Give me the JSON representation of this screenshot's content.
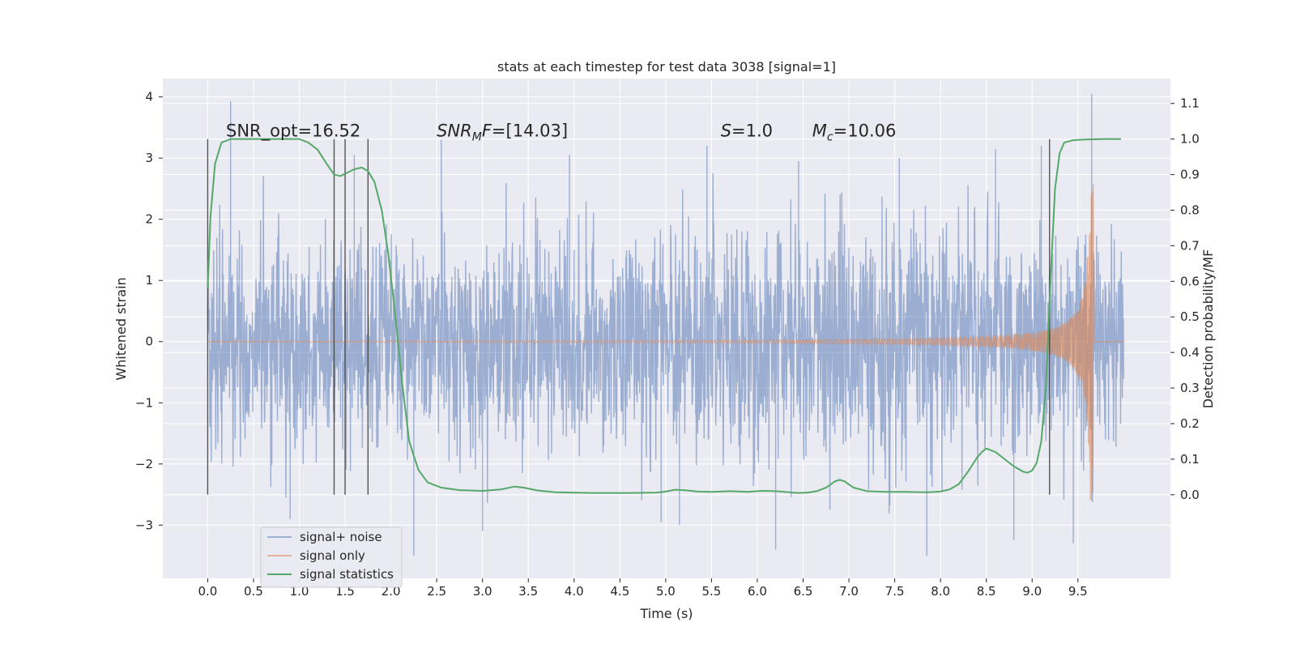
{
  "chart_data": {
    "type": "line",
    "title": "stats at each timestep for test data 3038 [signal=1]",
    "xlabel": "Time (s)",
    "ylabel": "Whitened strain",
    "y2label": "Detection probability/MF",
    "xlim": [
      -0.49,
      10.51
    ],
    "ylim": [
      -3.87,
      4.3
    ],
    "y2lim": [
      -0.235,
      1.17
    ],
    "x_ticks": [
      0.0,
      0.5,
      1.0,
      1.5,
      2.0,
      2.5,
      3.0,
      3.5,
      4.0,
      4.5,
      5.0,
      5.5,
      6.0,
      6.5,
      7.0,
      7.5,
      8.0,
      8.5,
      9.0,
      9.5
    ],
    "x_tick_labels": [
      "0.0",
      "0.5",
      "1.0",
      "1.5",
      "2.0",
      "2.5",
      "3.0",
      "3.5",
      "4.0",
      "4.5",
      "5.0",
      "5.5",
      "6.0",
      "6.5",
      "7.0",
      "7.5",
      "8.0",
      "8.5",
      "9.0",
      "9.5"
    ],
    "y_ticks": [
      4,
      3,
      2,
      1,
      0,
      -1,
      -2,
      -3
    ],
    "y_tick_labels": [
      "4",
      "3",
      "2",
      "1",
      "0",
      "−1",
      "−2",
      "−3"
    ],
    "y2_ticks": [
      1.1,
      1.0,
      0.9,
      0.8,
      0.7,
      0.6,
      0.5,
      0.4,
      0.3,
      0.2,
      0.1,
      0.0
    ],
    "y2_tick_labels": [
      "1.1",
      "1.0",
      "0.9",
      "0.8",
      "0.7",
      "0.6",
      "0.5",
      "0.4",
      "0.3",
      "0.2",
      "0.1",
      "0.0"
    ],
    "grid": true,
    "legend": "lower-left",
    "colors": {
      "background": "#eaeaf2",
      "grid": "#ffffff",
      "noise": "#4c72b0",
      "signal": "#dd8452",
      "stats": "#55a868",
      "markers": "#3a3a3a"
    },
    "annotations": [
      {
        "key": "snr_opt",
        "text": "SNR_opt=16.52",
        "x": 0.2,
        "y": 1.0
      },
      {
        "key": "snr_mf",
        "text": "SNR_MF=[14.03]",
        "x": 2.5,
        "y": 1.0
      },
      {
        "key": "s",
        "text": "S=1.0",
        "x": 5.6,
        "y": 1.0
      },
      {
        "key": "mc",
        "text": "M_c=10.06",
        "x": 6.6,
        "y": 1.0
      }
    ],
    "vertical_lines": [
      0.0,
      1.38,
      1.5,
      1.75,
      9.19
    ],
    "series": [
      {
        "name": "signal+ noise",
        "axis": "left",
        "t_range": [
          0.0,
          10.0
        ],
        "envelope_sigma": 1.0,
        "upper_peaks": [
          [
            0.25,
            3.93
          ],
          [
            9.65,
            4.05
          ],
          [
            2.55,
            3.3
          ],
          [
            5.45,
            3.2
          ],
          [
            8.6,
            3.15
          ],
          [
            1.6,
            3.05
          ],
          [
            3.95,
            3.05
          ],
          [
            7.55,
            3.0
          ],
          [
            6.45,
            2.95
          ],
          [
            9.1,
            3.2
          ]
        ],
        "lower_peaks": [
          [
            2.25,
            -3.5
          ],
          [
            6.2,
            -3.4
          ],
          [
            3.0,
            -3.1
          ],
          [
            8.8,
            -3.25
          ],
          [
            5.15,
            -3.0
          ],
          [
            7.85,
            -3.5
          ],
          [
            9.45,
            -3.3
          ],
          [
            0.9,
            -2.9
          ],
          [
            4.95,
            -2.95
          ]
        ]
      },
      {
        "name": "signal only",
        "axis": "left",
        "t_range": [
          0.0,
          10.0
        ],
        "merger_time": 9.67,
        "peak_amplitude": 2.6
      },
      {
        "name": "signal statistics",
        "axis": "right",
        "x": [
          0.0,
          0.03,
          0.08,
          0.15,
          0.25,
          0.4,
          0.7,
          1.0,
          1.1,
          1.2,
          1.3,
          1.38,
          1.45,
          1.52,
          1.6,
          1.68,
          1.75,
          1.82,
          1.9,
          1.97,
          2.05,
          2.12,
          2.2,
          2.3,
          2.4,
          2.55,
          2.75,
          3.0,
          3.2,
          3.35,
          3.45,
          3.6,
          3.8,
          4.2,
          4.6,
          4.9,
          5.0,
          5.1,
          5.2,
          5.35,
          5.5,
          5.7,
          5.9,
          6.05,
          6.2,
          6.35,
          6.45,
          6.55,
          6.65,
          6.75,
          6.85,
          6.9,
          6.95,
          7.05,
          7.2,
          7.4,
          7.6,
          7.85,
          8.0,
          8.1,
          8.2,
          8.3,
          8.4,
          8.45,
          8.5,
          8.6,
          8.7,
          8.8,
          8.9,
          8.95,
          9.0,
          9.05,
          9.1,
          9.15,
          9.2,
          9.25,
          9.3,
          9.35,
          9.45,
          9.6,
          9.8,
          9.97
        ],
        "y": [
          0.58,
          0.78,
          0.93,
          0.99,
          1.0,
          1.0,
          1.0,
          1.0,
          0.99,
          0.97,
          0.93,
          0.9,
          0.896,
          0.905,
          0.915,
          0.92,
          0.91,
          0.88,
          0.8,
          0.68,
          0.5,
          0.32,
          0.15,
          0.07,
          0.035,
          0.02,
          0.013,
          0.011,
          0.015,
          0.023,
          0.02,
          0.012,
          0.007,
          0.005,
          0.005,
          0.006,
          0.009,
          0.014,
          0.013,
          0.009,
          0.008,
          0.01,
          0.008,
          0.011,
          0.01,
          0.007,
          0.005,
          0.006,
          0.01,
          0.02,
          0.038,
          0.042,
          0.038,
          0.02,
          0.01,
          0.008,
          0.008,
          0.007,
          0.009,
          0.015,
          0.03,
          0.065,
          0.105,
          0.12,
          0.13,
          0.12,
          0.1,
          0.08,
          0.065,
          0.062,
          0.068,
          0.09,
          0.15,
          0.3,
          0.6,
          0.86,
          0.96,
          0.99,
          0.997,
          0.999,
          1.0,
          1.0
        ]
      }
    ]
  }
}
